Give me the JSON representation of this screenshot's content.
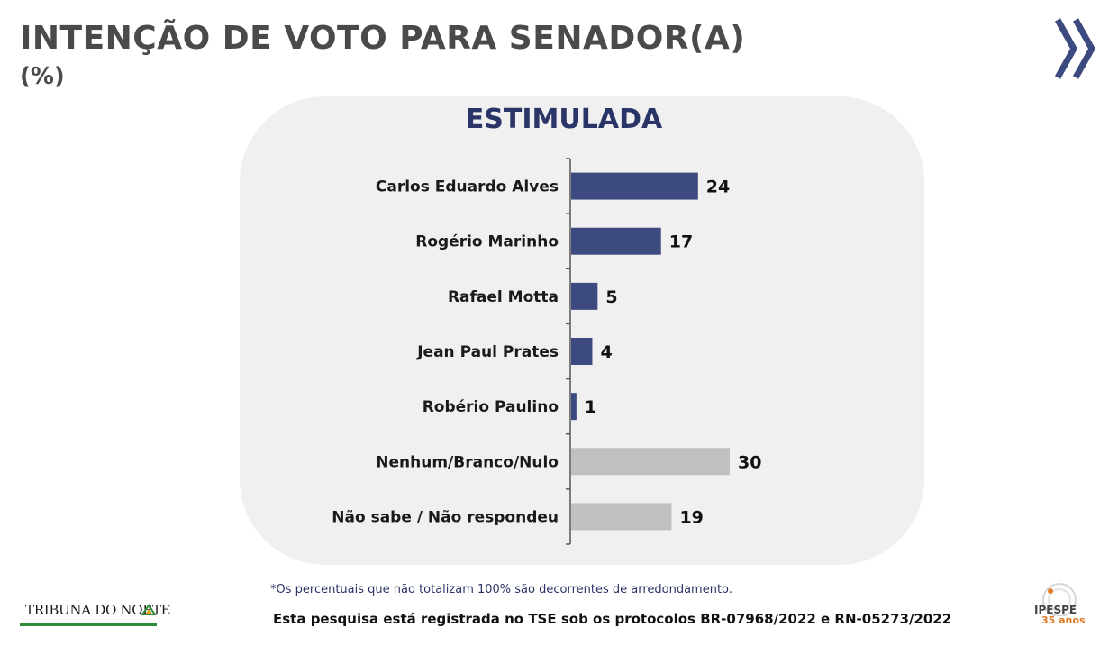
{
  "header": {
    "title": "INTENÇÃO DE VOTO PARA SENADOR(A)",
    "subtitle": "(%)"
  },
  "chart_data": {
    "type": "bar",
    "orientation": "horizontal",
    "title": "ESTIMULADA",
    "categories": [
      "Carlos Eduardo Alves",
      "Rogério Marinho",
      "Rafael Motta",
      "Jean Paul Prates",
      "Robério Paulino",
      "Nenhum/Branco/Nulo",
      "Não sabe / Não respondeu"
    ],
    "values": [
      24,
      17,
      5,
      4,
      1,
      30,
      19
    ],
    "bar_colors": [
      "#3d4a80",
      "#3d4a80",
      "#3d4a80",
      "#3d4a80",
      "#3d4a80",
      "#c0c0c0",
      "#c0c0c0"
    ],
    "xlim": [
      0,
      30
    ],
    "grid": false,
    "legend": "none"
  },
  "footer": {
    "footnote": "*Os percentuais que não totalizam 100% são decorrentes de arredondamento.",
    "registration": "Esta pesquisa está registrada no TSE sob os protocolos BR-07968/2022 e RN-05273/2022",
    "logo_left": "TRIBUNA DO NORTE",
    "logo_right": "IPESPE",
    "logo_right_sub": "35 anos"
  },
  "colors": {
    "accent": "#2b3467",
    "bar_candidate": "#3d4a80",
    "bar_other": "#c0c0c0",
    "panel": "#f0f0f0"
  }
}
